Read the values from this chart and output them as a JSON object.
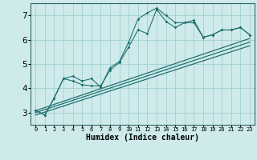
{
  "title": "",
  "xlabel": "Humidex (Indice chaleur)",
  "xlim": [
    -0.5,
    23.5
  ],
  "ylim": [
    2.5,
    7.5
  ],
  "yticks": [
    3,
    4,
    5,
    6,
    7
  ],
  "background_color": "#ceeaea",
  "grid_color": "#a8d4d4",
  "line_color": "#1a6b6b",
  "hours": [
    0,
    1,
    2,
    3,
    4,
    5,
    6,
    7,
    8,
    9,
    10,
    11,
    12,
    13,
    14,
    15,
    16,
    17,
    18,
    19,
    20,
    21,
    22,
    23
  ],
  "line_spiky1": [
    3.1,
    2.9,
    3.6,
    4.4,
    4.3,
    4.15,
    4.1,
    4.1,
    4.75,
    5.05,
    5.7,
    6.4,
    6.25,
    7.25,
    6.75,
    6.5,
    6.7,
    6.8,
    6.1,
    6.2,
    6.4,
    6.4,
    6.5,
    6.2
  ],
  "line_spiky2": [
    3.1,
    2.9,
    3.6,
    4.4,
    4.5,
    4.3,
    4.4,
    4.05,
    4.85,
    5.1,
    5.9,
    6.85,
    7.1,
    7.3,
    7.0,
    6.7,
    6.7,
    6.7,
    6.1,
    6.2,
    6.4,
    6.4,
    6.5,
    6.2
  ],
  "trend1": [
    3.08,
    6.05
  ],
  "trend2": [
    3.0,
    5.9
  ],
  "trend3": [
    2.9,
    5.75
  ],
  "trend_x": [
    0,
    23
  ]
}
